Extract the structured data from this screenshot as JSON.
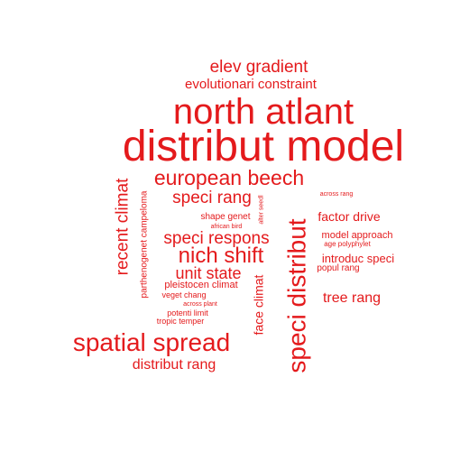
{
  "colors": {
    "word": "#e41a1c",
    "background": "#ffffff"
  },
  "words": [
    {
      "text": "distribut model",
      "rotated": false
    },
    {
      "text": "north atlant",
      "rotated": false
    },
    {
      "text": "speci distribut",
      "rotated": true
    },
    {
      "text": "spatial spread",
      "rotated": false
    },
    {
      "text": "european beech",
      "rotated": false
    },
    {
      "text": "nich shift",
      "rotated": false
    },
    {
      "text": "recent climat",
      "rotated": true
    },
    {
      "text": "elev gradient",
      "rotated": false
    },
    {
      "text": "speci respons",
      "rotated": false
    },
    {
      "text": "speci rang",
      "rotated": false
    },
    {
      "text": "evolutionari constraint",
      "rotated": false
    },
    {
      "text": "unit state",
      "rotated": false
    },
    {
      "text": "distribut rang",
      "rotated": false
    },
    {
      "text": "tree rang",
      "rotated": false
    },
    {
      "text": "face climat",
      "rotated": true
    },
    {
      "text": "factor drive",
      "rotated": false
    },
    {
      "text": "introduc speci",
      "rotated": false
    },
    {
      "text": "model approach",
      "rotated": false
    },
    {
      "text": "parthenogenet campeloma",
      "rotated": true
    },
    {
      "text": "pleistocen climat",
      "rotated": false
    },
    {
      "text": "shape genet",
      "rotated": false
    },
    {
      "text": "popul rang",
      "rotated": false
    },
    {
      "text": "veget chang",
      "rotated": false
    },
    {
      "text": "potenti limit",
      "rotated": false
    },
    {
      "text": "tropic temper",
      "rotated": false
    },
    {
      "text": "across rang",
      "rotated": false
    },
    {
      "text": "age polyphylet",
      "rotated": false
    },
    {
      "text": "african bird",
      "rotated": false
    },
    {
      "text": "alter seedl",
      "rotated": true
    },
    {
      "text": "across plant",
      "rotated": false
    }
  ]
}
